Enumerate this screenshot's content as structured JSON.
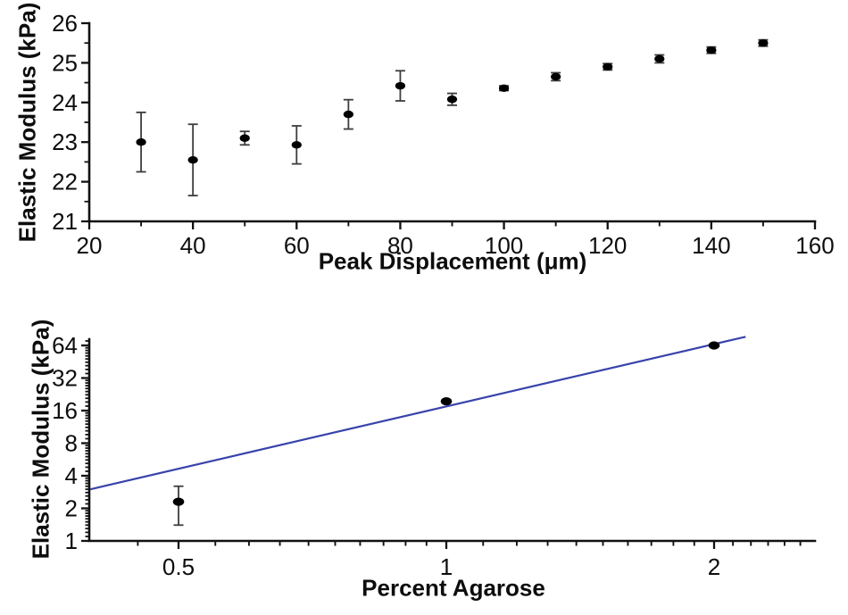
{
  "page": {
    "background": "#ffffff"
  },
  "chart_data": [
    {
      "type": "scatter",
      "title": "",
      "xlabel": "Peak Displacement (μm)",
      "ylabel": "Elastic Modulus (kPa)",
      "xscale": "linear",
      "yscale": "linear",
      "xlim": [
        20,
        160
      ],
      "ylim": [
        21,
        26
      ],
      "grid": false,
      "legend": "none",
      "x_major_ticks": [
        20,
        40,
        60,
        80,
        100,
        120,
        140,
        160
      ],
      "x_minor_ticks": [
        30,
        50,
        70,
        90,
        110,
        130,
        150
      ],
      "y_major_ticks": [
        21,
        22,
        23,
        24,
        25,
        26
      ],
      "y_minor_ticks": [
        21.5,
        22.5,
        23.5,
        24.5,
        25.5
      ],
      "marker_color": "#000000",
      "errorbar_color": "#3d3d3d",
      "points": [
        {
          "x": 30,
          "y": 23.0,
          "err": 0.75
        },
        {
          "x": 40,
          "y": 22.55,
          "err": 0.9
        },
        {
          "x": 50,
          "y": 23.1,
          "err": 0.17
        },
        {
          "x": 60,
          "y": 22.93,
          "err": 0.48
        },
        {
          "x": 70,
          "y": 23.7,
          "err": 0.37
        },
        {
          "x": 80,
          "y": 24.42,
          "err": 0.38
        },
        {
          "x": 90,
          "y": 24.08,
          "err": 0.15
        },
        {
          "x": 100,
          "y": 24.36,
          "err": 0.06
        },
        {
          "x": 110,
          "y": 24.65,
          "err": 0.1
        },
        {
          "x": 120,
          "y": 24.9,
          "err": 0.08
        },
        {
          "x": 130,
          "y": 25.1,
          "err": 0.1
        },
        {
          "x": 140,
          "y": 25.32,
          "err": 0.08
        },
        {
          "x": 150,
          "y": 25.5,
          "err": 0.08
        }
      ]
    },
    {
      "type": "scatter",
      "title": "",
      "xlabel": "Percent Agarose",
      "ylabel": "Elastic Modulus (kPa)",
      "xscale": "log2",
      "yscale": "log2",
      "xlim": [
        0.4,
        2.6
      ],
      "ylim": [
        1,
        74
      ],
      "grid": false,
      "legend": "none",
      "x_major_ticks": [
        0.5,
        1,
        2
      ],
      "x_tick_labels": [
        "0.5",
        "1",
        "2"
      ],
      "x_minor_ticks": [
        0.45,
        0.55,
        0.6,
        0.65,
        0.7,
        0.75,
        0.8,
        0.85,
        0.9,
        0.95,
        1.1,
        1.2,
        1.3,
        1.4,
        1.5,
        1.6,
        1.7,
        1.8,
        1.9,
        2.1,
        2.2,
        2.3,
        2.4,
        2.5
      ],
      "y_major_ticks": [
        1,
        2,
        4,
        8,
        16,
        32,
        64
      ],
      "y_tick_labels": [
        "1",
        "2",
        "4",
        "8",
        "16",
        "32",
        "64"
      ],
      "y_minor_mult": [
        1.1,
        1.2,
        1.3,
        1.4,
        1.5,
        1.6,
        1.7,
        1.8,
        1.9
      ],
      "marker_color": "#000000",
      "errorbar_color": "#3d3d3d",
      "points": [
        {
          "x": 0.5,
          "y": 2.3,
          "lo": 1.4,
          "hi": 3.2
        },
        {
          "x": 1,
          "y": 19.5
        },
        {
          "x": 2,
          "y": 64
        }
      ],
      "fit_line": {
        "x1": 0.398,
        "y1": 3.0,
        "x2": 2.17,
        "y2": 77,
        "color": "#3843ab"
      }
    }
  ]
}
